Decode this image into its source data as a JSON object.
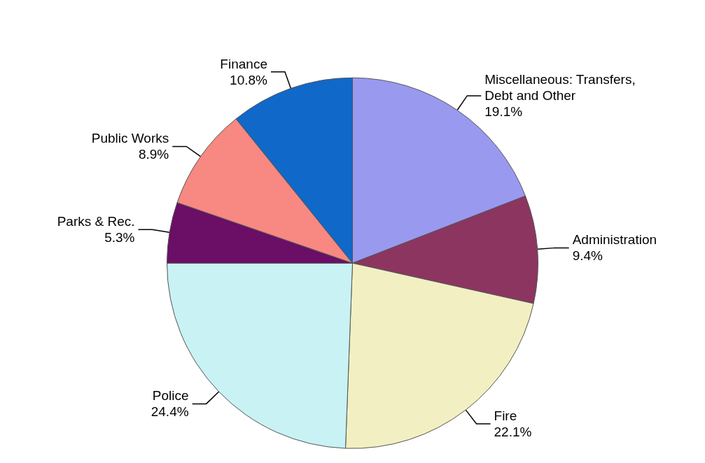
{
  "chart_data": {
    "type": "pie",
    "categories": [
      "Miscellaneous: Transfers, Debt and Other",
      "Administration",
      "Fire",
      "Police",
      "Parks & Rec.",
      "Public Works",
      "Finance"
    ],
    "values": [
      19.1,
      9.4,
      22.1,
      24.4,
      5.3,
      8.9,
      10.8
    ],
    "colors": [
      "#9999f0",
      "#8c3560",
      "#f2f0c2",
      "#c8f2f4",
      "#6a0e66",
      "#f88882",
      "#1068c8"
    ],
    "value_labels": [
      "19.1%",
      "9.4%",
      "22.1%",
      "24.4%",
      "5.3%",
      "8.9%",
      "10.8%"
    ],
    "legend": false
  }
}
